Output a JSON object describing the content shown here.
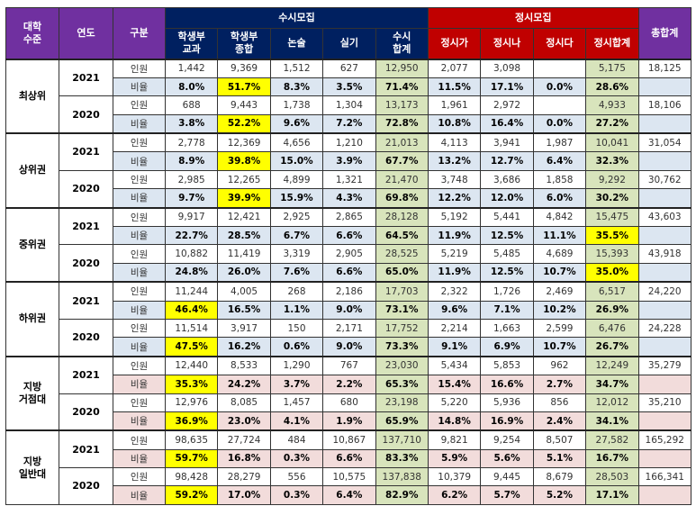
{
  "header": {
    "level": "대학\n수준",
    "year": "연도",
    "kind": "구분",
    "susi_group": "수시모집",
    "jeongsi_group": "정시모집",
    "total": "총합계",
    "columns": [
      "학생부\n교과",
      "학생부\n종합",
      "논술",
      "실기",
      "수시\n합계",
      "정시가",
      "정시나",
      "정시다",
      "정시합계"
    ]
  },
  "colors": {
    "purple": "#7030a0",
    "navy": "#002060",
    "red": "#c00000",
    "ratio_blue": "#dce6f1",
    "ratio_pink": "#f2dcdb",
    "sum_green": "#d8e4bc",
    "highlight": "#ffff00"
  },
  "labels": {
    "count": "인원",
    "ratio": "비율"
  },
  "groups": [
    {
      "level": "최상위",
      "tint": "blue",
      "years": [
        {
          "year": "2021",
          "count": [
            "1,442",
            "9,369",
            "1,512",
            "627",
            "12,950",
            "2,077",
            "3,098",
            "",
            "5,175"
          ],
          "total": "18,125",
          "ratio": [
            "8.0%",
            "51.7%",
            "8.3%",
            "3.5%",
            "71.4%",
            "11.5%",
            "17.1%",
            "0.0%",
            "28.6%"
          ],
          "highlight": 1
        },
        {
          "year": "2020",
          "count": [
            "688",
            "9,443",
            "1,738",
            "1,304",
            "13,173",
            "1,961",
            "2,972",
            "",
            "4,933"
          ],
          "total": "18,106",
          "ratio": [
            "3.8%",
            "52.2%",
            "9.6%",
            "7.2%",
            "72.8%",
            "10.8%",
            "16.4%",
            "0.0%",
            "27.2%"
          ],
          "highlight": 1
        }
      ]
    },
    {
      "level": "상위권",
      "tint": "blue",
      "years": [
        {
          "year": "2021",
          "count": [
            "2,778",
            "12,369",
            "4,656",
            "1,210",
            "21,013",
            "4,113",
            "3,941",
            "1,987",
            "10,041"
          ],
          "total": "31,054",
          "ratio": [
            "8.9%",
            "39.8%",
            "15.0%",
            "3.9%",
            "67.7%",
            "13.2%",
            "12.7%",
            "6.4%",
            "32.3%"
          ],
          "highlight": 1
        },
        {
          "year": "2020",
          "count": [
            "2,985",
            "12,265",
            "4,899",
            "1,321",
            "21,470",
            "3,748",
            "3,686",
            "1,858",
            "9,292"
          ],
          "total": "30,762",
          "ratio": [
            "9.7%",
            "39.9%",
            "15.9%",
            "4.3%",
            "69.8%",
            "12.2%",
            "12.0%",
            "6.0%",
            "30.2%"
          ],
          "highlight": 1
        }
      ]
    },
    {
      "level": "중위권",
      "tint": "blue",
      "years": [
        {
          "year": "2021",
          "count": [
            "9,917",
            "12,421",
            "2,925",
            "2,865",
            "28,128",
            "5,192",
            "5,441",
            "4,842",
            "15,475"
          ],
          "total": "43,603",
          "ratio": [
            "22.7%",
            "28.5%",
            "6.7%",
            "6.6%",
            "64.5%",
            "11.9%",
            "12.5%",
            "11.1%",
            "35.5%"
          ],
          "highlight": 8
        },
        {
          "year": "2020",
          "count": [
            "10,882",
            "11,419",
            "3,319",
            "2,905",
            "28,525",
            "5,219",
            "5,485",
            "4,689",
            "15,393"
          ],
          "total": "43,918",
          "ratio": [
            "24.8%",
            "26.0%",
            "7.6%",
            "6.6%",
            "65.0%",
            "11.9%",
            "12.5%",
            "10.7%",
            "35.0%"
          ],
          "highlight": 8
        }
      ]
    },
    {
      "level": "하위권",
      "tint": "blue",
      "years": [
        {
          "year": "2021",
          "count": [
            "11,244",
            "4,005",
            "268",
            "2,186",
            "17,703",
            "2,322",
            "1,726",
            "2,469",
            "6,517"
          ],
          "total": "24,220",
          "ratio": [
            "46.4%",
            "16.5%",
            "1.1%",
            "9.0%",
            "73.1%",
            "9.6%",
            "7.1%",
            "10.2%",
            "26.9%"
          ],
          "highlight": 0
        },
        {
          "year": "2020",
          "count": [
            "11,514",
            "3,917",
            "150",
            "2,171",
            "17,752",
            "2,214",
            "1,663",
            "2,599",
            "6,476"
          ],
          "total": "24,228",
          "ratio": [
            "47.5%",
            "16.2%",
            "0.6%",
            "9.0%",
            "73.3%",
            "9.1%",
            "6.9%",
            "10.7%",
            "26.7%"
          ],
          "highlight": 0
        }
      ]
    },
    {
      "level": "지방\n거점대",
      "tint": "pink",
      "years": [
        {
          "year": "2021",
          "count": [
            "12,440",
            "8,533",
            "1,290",
            "767",
            "23,030",
            "5,434",
            "5,853",
            "962",
            "12,249"
          ],
          "total": "35,279",
          "ratio": [
            "35.3%",
            "24.2%",
            "3.7%",
            "2.2%",
            "65.3%",
            "15.4%",
            "16.6%",
            "2.7%",
            "34.7%"
          ],
          "highlight": 0
        },
        {
          "year": "2020",
          "count": [
            "12,976",
            "8,085",
            "1,457",
            "680",
            "23,198",
            "5,220",
            "5,936",
            "856",
            "12,012"
          ],
          "total": "35,210",
          "ratio": [
            "36.9%",
            "23.0%",
            "4.1%",
            "1.9%",
            "65.9%",
            "14.8%",
            "16.9%",
            "2.4%",
            "34.1%"
          ],
          "highlight": 0
        }
      ]
    },
    {
      "level": "지방\n일반대",
      "tint": "pink",
      "years": [
        {
          "year": "2021",
          "count": [
            "98,635",
            "27,724",
            "484",
            "10,867",
            "137,710",
            "9,821",
            "9,254",
            "8,507",
            "27,582"
          ],
          "total": "165,292",
          "ratio": [
            "59.7%",
            "16.8%",
            "0.3%",
            "6.6%",
            "83.3%",
            "5.9%",
            "5.6%",
            "5.1%",
            "16.7%"
          ],
          "highlight": 0
        },
        {
          "year": "2020",
          "count": [
            "98,428",
            "28,279",
            "556",
            "10,575",
            "137,838",
            "10,379",
            "9,445",
            "8,679",
            "28,503"
          ],
          "total": "166,341",
          "ratio": [
            "59.2%",
            "17.0%",
            "0.3%",
            "6.4%",
            "82.9%",
            "6.2%",
            "5.7%",
            "5.2%",
            "17.1%"
          ],
          "highlight": 0
        }
      ]
    }
  ]
}
